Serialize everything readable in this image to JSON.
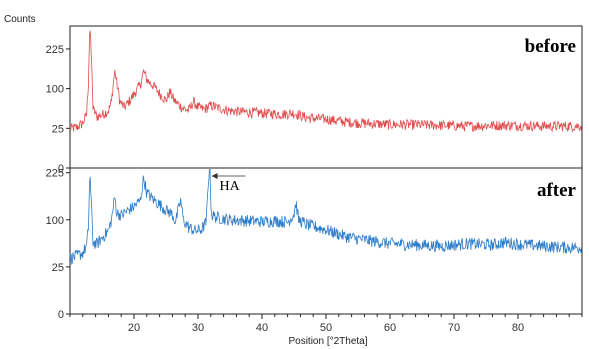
{
  "chart_data": {
    "type": "line",
    "ylabel": "Counts",
    "xlabel": "Position [°2Theta]",
    "xlim": [
      10,
      90
    ],
    "x_ticks": [
      20,
      30,
      40,
      50,
      60,
      70,
      80
    ],
    "y_ticks": [
      0,
      25,
      100,
      225
    ],
    "y_scale": "sqrt",
    "grid": false,
    "panels": [
      {
        "label": "before",
        "color": "#e04a4a",
        "ylim": [
          0,
          320
        ],
        "series": [
          {
            "points": [
              [
                10,
                25
              ],
              [
                11,
                26
              ],
              [
                12,
                32
              ],
              [
                12.6,
                45
              ],
              [
                12.9,
                120
              ],
              [
                13.1,
                330
              ],
              [
                13.3,
                210
              ],
              [
                13.6,
                55
              ],
              [
                14.2,
                42
              ],
              [
                15,
                45
              ],
              [
                16,
                52
              ],
              [
                16.5,
                70
              ],
              [
                17,
                150
              ],
              [
                17.3,
                115
              ],
              [
                17.8,
                70
              ],
              [
                18.5,
                58
              ],
              [
                19.5,
                75
              ],
              [
                20.5,
                98
              ],
              [
                21,
                110
              ],
              [
                21.5,
                148
              ],
              [
                22,
                125
              ],
              [
                22.5,
                115
              ],
              [
                23,
                108
              ],
              [
                24,
                88
              ],
              [
                25,
                72
              ],
              [
                25.6,
                92
              ],
              [
                26.3,
                72
              ],
              [
                27.5,
                58
              ],
              [
                28.5,
                52
              ],
              [
                29.3,
                70
              ],
              [
                30,
                58
              ],
              [
                31,
                55
              ],
              [
                32,
                62
              ],
              [
                33,
                58
              ],
              [
                35,
                52
              ],
              [
                37,
                50
              ],
              [
                40,
                48
              ],
              [
                43,
                46
              ],
              [
                45,
                48
              ],
              [
                47,
                40
              ],
              [
                50,
                38
              ],
              [
                53,
                34
              ],
              [
                56,
                32
              ],
              [
                60,
                30
              ],
              [
                64,
                30
              ],
              [
                68,
                29
              ],
              [
                72,
                28
              ],
              [
                76,
                29
              ],
              [
                80,
                29
              ],
              [
                84,
                28
              ],
              [
                88,
                28
              ],
              [
                90,
                28
              ]
            ]
          }
        ]
      },
      {
        "label": "after",
        "color": "#2d7cc8",
        "ylim": [
          0,
          240
        ],
        "annotation": {
          "text": "HA",
          "x": 31.8
        },
        "series": [
          {
            "points": [
              [
                10,
                35
              ],
              [
                11,
                38
              ],
              [
                12,
                42
              ],
              [
                12.6,
                52
              ],
              [
                12.9,
                85
              ],
              [
                13.1,
                230
              ],
              [
                13.3,
                140
              ],
              [
                13.6,
                58
              ],
              [
                14.2,
                55
              ],
              [
                15,
                65
              ],
              [
                16,
                78
              ],
              [
                16.5,
                100
              ],
              [
                17,
                155
              ],
              [
                17.3,
                115
              ],
              [
                18,
                110
              ],
              [
                19,
                120
              ],
              [
                20,
                130
              ],
              [
                21,
                145
              ],
              [
                21.5,
                210
              ],
              [
                22,
                165
              ],
              [
                23,
                148
              ],
              [
                24,
                135
              ],
              [
                25,
                122
              ],
              [
                26,
                112
              ],
              [
                26.5,
                95
              ],
              [
                27.3,
                145
              ],
              [
                27.7,
                100
              ],
              [
                28.5,
                85
              ],
              [
                29.5,
                78
              ],
              [
                30.5,
                80
              ],
              [
                31.3,
                95
              ],
              [
                31.8,
                250
              ],
              [
                32.1,
                110
              ],
              [
                33,
                105
              ],
              [
                35,
                100
              ],
              [
                38,
                98
              ],
              [
                40,
                96
              ],
              [
                42,
                98
              ],
              [
                44,
                95
              ],
              [
                45,
                112
              ],
              [
                45.3,
                140
              ],
              [
                45.7,
                100
              ],
              [
                47,
                90
              ],
              [
                50,
                80
              ],
              [
                53,
                68
              ],
              [
                56,
                62
              ],
              [
                60,
                56
              ],
              [
                64,
                54
              ],
              [
                68,
                52
              ],
              [
                72,
                56
              ],
              [
                76,
                54
              ],
              [
                78,
                58
              ],
              [
                80,
                55
              ],
              [
                84,
                52
              ],
              [
                88,
                50
              ],
              [
                90,
                50
              ]
            ]
          }
        ]
      }
    ]
  }
}
